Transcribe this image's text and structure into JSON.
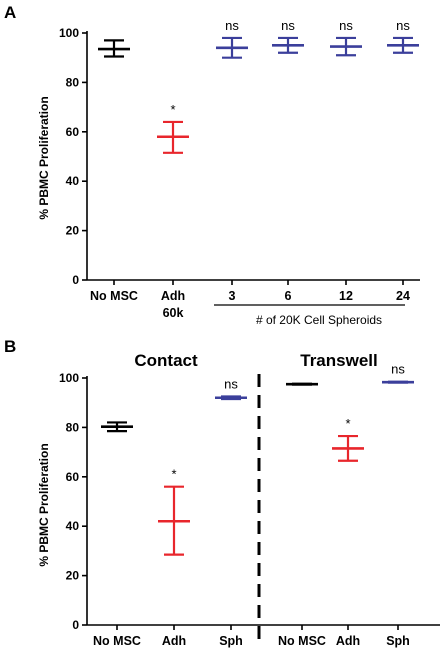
{
  "chart_data": [
    {
      "panel": "A",
      "type": "scatter",
      "ylabel": "% PBMC Proliferation",
      "ylim": [
        0,
        100
      ],
      "yticks": [
        "0",
        "20",
        "40",
        "60",
        "80",
        "100"
      ],
      "categories": [
        {
          "label": "No MSC",
          "label2": ""
        },
        {
          "label": "Adh",
          "label2": "60k"
        },
        {
          "label": "3",
          "label2": ""
        },
        {
          "label": "6",
          "label2": ""
        },
        {
          "label": "12",
          "label2": ""
        },
        {
          "label": "24",
          "label2": ""
        }
      ],
      "group_label": "# of 20K Cell Spheroids",
      "points": [
        {
          "mean": 93.5,
          "lo": 90.5,
          "hi": 97,
          "color": "#000000",
          "sig": ""
        },
        {
          "mean": 58,
          "lo": 51.5,
          "hi": 64,
          "color": "#e8262c",
          "sig": "*"
        },
        {
          "mean": 94,
          "lo": 90,
          "hi": 98,
          "color": "#3b3f9b",
          "sig": "ns"
        },
        {
          "mean": 95,
          "lo": 92,
          "hi": 98,
          "color": "#3b3f9b",
          "sig": "ns"
        },
        {
          "mean": 94.5,
          "lo": 91,
          "hi": 98,
          "color": "#3b3f9b",
          "sig": "ns"
        },
        {
          "mean": 95,
          "lo": 92,
          "hi": 98,
          "color": "#3b3f9b",
          "sig": "ns"
        }
      ]
    },
    {
      "panel": "B",
      "type": "scatter",
      "ylabel": "% PBMC Proliferation",
      "ylim": [
        0,
        100
      ],
      "yticks": [
        "0",
        "20",
        "40",
        "60",
        "80",
        "100"
      ],
      "subtitles": [
        "Contact",
        "Transwell"
      ],
      "categories": [
        {
          "label": "No MSC"
        },
        {
          "label": "Adh"
        },
        {
          "label": "Sph"
        },
        {
          "label": "No MSC"
        },
        {
          "label": "Adh"
        },
        {
          "label": "Sph"
        }
      ],
      "points": [
        {
          "mean": 80.3,
          "lo": 78.5,
          "hi": 82,
          "color": "#000000",
          "sig": ""
        },
        {
          "mean": 42,
          "lo": 28.5,
          "hi": 56,
          "color": "#e8262c",
          "sig": "*"
        },
        {
          "mean": 92,
          "lo": 91.5,
          "hi": 92.5,
          "color": "#3b3f9b",
          "sig": "ns"
        },
        {
          "mean": 97.5,
          "lo": 97.3,
          "hi": 97.7,
          "color": "#000000",
          "sig": ""
        },
        {
          "mean": 71.5,
          "lo": 66.5,
          "hi": 76.5,
          "color": "#e8262c",
          "sig": "*"
        },
        {
          "mean": 98.3,
          "lo": 98.1,
          "hi": 98.5,
          "color": "#3b3f9b",
          "sig": "ns"
        }
      ]
    }
  ]
}
